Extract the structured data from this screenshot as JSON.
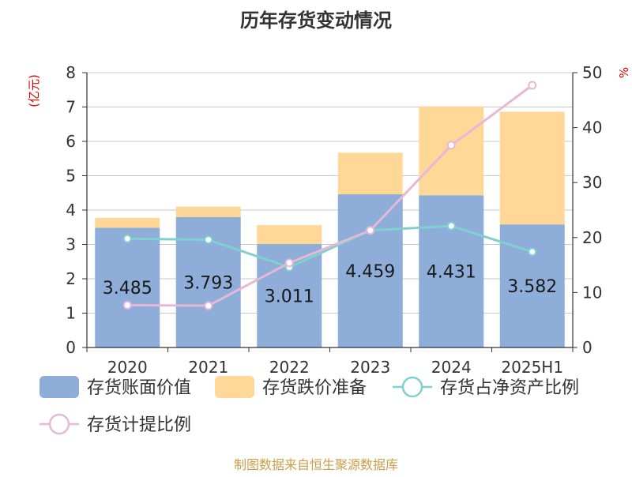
{
  "chart_data": {
    "type": "bar",
    "title": "历年存货变动情况",
    "categories": [
      "2020",
      "2021",
      "2022",
      "2023",
      "2024",
      "2025H1"
    ],
    "y_left_unit": "(亿元)",
    "y_left_ticks": [
      0,
      1,
      2,
      3,
      4,
      5,
      6,
      7,
      8
    ],
    "y_right_unit": "%",
    "y_right_ticks": [
      0,
      10,
      20,
      30,
      40,
      50
    ],
    "ylim_left": [
      0,
      8
    ],
    "ylim_right": [
      0,
      50
    ],
    "grid": true,
    "legend_position": "bottom",
    "series": [
      {
        "name": "存货账面价值",
        "kind": "bar",
        "axis": "left",
        "stack": "inventory",
        "color": "#8eadd9",
        "values": [
          3.485,
          3.793,
          3.011,
          4.459,
          4.431,
          3.582
        ],
        "labels": [
          "3.485",
          "3.793",
          "3.011",
          "4.459",
          "4.431",
          "3.582"
        ]
      },
      {
        "name": "存货跌价准备",
        "kind": "bar",
        "axis": "left",
        "stack": "inventory",
        "color": "#ffd797",
        "values": [
          0.29,
          0.31,
          0.55,
          1.21,
          2.59,
          3.28
        ]
      },
      {
        "name": "存货占净资产比例",
        "kind": "line",
        "axis": "right",
        "color": "#7fd1cf",
        "values": [
          19.8,
          19.6,
          14.6,
          21.3,
          22.1,
          17.4
        ]
      },
      {
        "name": "存货计提比例",
        "kind": "line",
        "axis": "right",
        "color": "#e6b8d6",
        "values": [
          7.7,
          7.6,
          15.4,
          21.3,
          36.8,
          47.7
        ]
      }
    ]
  },
  "footer": {
    "source": "制图数据来自恒生聚源数据库"
  }
}
